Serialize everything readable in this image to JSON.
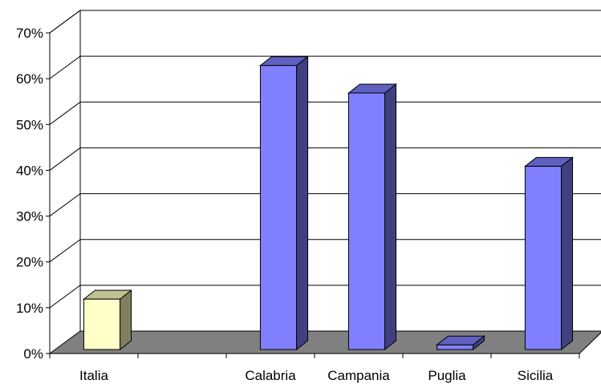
{
  "chart_data": {
    "type": "bar",
    "categories": [
      "Italia",
      "",
      "Calabria",
      "Campania",
      "Puglia",
      "Sicilia"
    ],
    "series": [
      {
        "values": [
          0.11,
          null,
          0.62,
          0.56,
          0.01,
          0.4
        ],
        "colors": [
          "#ffffc8",
          null,
          "#8080ff",
          "#8080ff",
          "#8080ff",
          "#8080ff"
        ]
      }
    ],
    "y_ticks": [
      "0%",
      "10%",
      "20%",
      "30%",
      "40%",
      "50%",
      "60%",
      "70%"
    ],
    "ylim": [
      0,
      0.7
    ],
    "grid": true,
    "legend": "none",
    "three_d": true,
    "colors": {
      "floor": "#808080",
      "gridline": "#000000",
      "highlight_front": "#ffffc8",
      "highlight_side": "#808060",
      "highlight_top": "#c0c090",
      "bar_front": "#8080ff",
      "bar_side": "#404080",
      "bar_top": "#6060c0"
    }
  }
}
